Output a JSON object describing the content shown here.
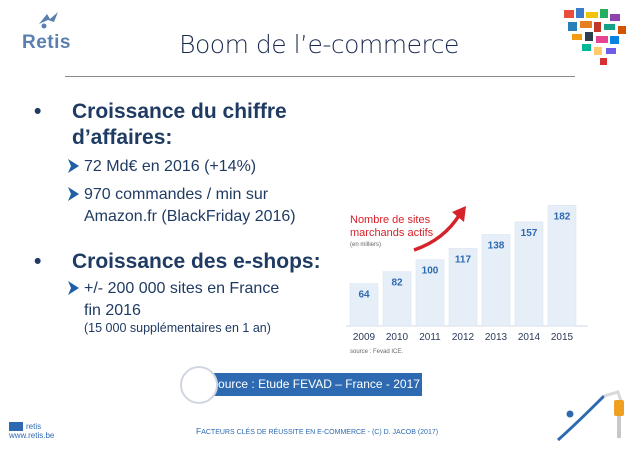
{
  "logo": {
    "name": "Retis"
  },
  "title": "Boom de l’e-commerce",
  "bullets": [
    {
      "heading_line1": "Croissance du chiffre",
      "heading_line2": "d’affaires:",
      "subs": [
        {
          "lines": [
            "72 Md€ en 2016 (+14%)"
          ]
        },
        {
          "lines": [
            "970 commandes / min sur",
            "Amazon.fr (BlackFriday 2016)"
          ]
        }
      ]
    },
    {
      "heading_line1": "Croissance des e-shops:",
      "subs": [
        {
          "lines": [
            "+/- 200 000 sites en France",
            "fin 2016"
          ]
        }
      ],
      "note": "(15 000 supplémentaires en 1 an)"
    }
  ],
  "chart_data": {
    "type": "bar",
    "title": "Nombre de sites marchands actifs",
    "title_line1": "Nombre de sites",
    "title_line2": "marchands actifs",
    "subtitle": "(en milliers)",
    "categories": [
      "2009",
      "2010",
      "2011",
      "2012",
      "2013",
      "2014",
      "2015"
    ],
    "values": [
      64,
      82,
      100,
      117,
      138,
      157,
      182
    ],
    "source": "source : Fevad ICE.",
    "bar_color": "#e6eef8",
    "value_color": "#2e6ab1",
    "title_color": "#d6222a",
    "ylim": [
      0,
      190
    ],
    "grid": false
  },
  "source_box": "Source : Etude FEVAD – France - 2017",
  "footer": {
    "left_line1": "retis",
    "left_line2": "www.retis.be",
    "center_prefix": "F",
    "center_text": "ACTEURS CLÉS DE RÉUSSITE EN E-COMMERCE - (C) D. JACOB (2017)"
  },
  "colors": {
    "accent": "#2e6ab1",
    "text": "#1f3b63",
    "arrow_red": "#d6222a"
  }
}
